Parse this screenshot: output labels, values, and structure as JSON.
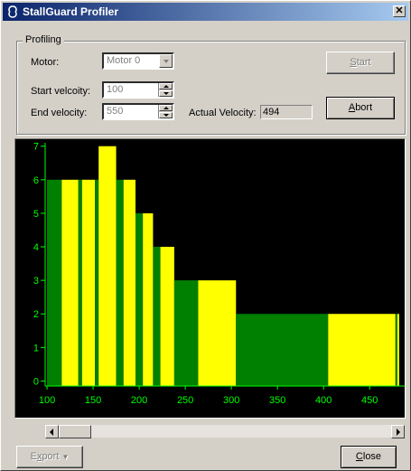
{
  "window": {
    "title": "StallGuard Profiler",
    "close_glyph": "✕"
  },
  "profiling": {
    "group_label": "Profiling",
    "motor_label": "Motor:",
    "motor_value": "Motor 0",
    "start_velocity_label": "Start velcoity:",
    "start_velocity_value": "100",
    "end_velocity_label": "End velocity:",
    "end_velocity_value": "550",
    "actual_velocity_label": "Actual Velocity:",
    "actual_velocity_value": "494",
    "start_button": {
      "prefix": "",
      "hotkey": "S",
      "rest": "tart"
    },
    "abort_button": {
      "prefix": "",
      "hotkey": "A",
      "rest": "bort"
    }
  },
  "footer": {
    "export_button": {
      "prefix": "E",
      "hotkey": "x",
      "rest": "port",
      "arrow": "▼"
    },
    "close_button": {
      "prefix": "",
      "hotkey": "C",
      "rest": "lose"
    }
  },
  "colors": {
    "green": "#008000",
    "yellow": "#ffff00",
    "axis": "#00ff00",
    "background": "#000000"
  },
  "chart_data": {
    "type": "bar",
    "title": "",
    "xlabel": "",
    "ylabel": "",
    "xlim": [
      98,
      488
    ],
    "ylim": [
      -0.15,
      7.1
    ],
    "yticks": [
      0,
      1,
      2,
      3,
      4,
      5,
      6,
      7
    ],
    "xticks": [
      100,
      150,
      200,
      250,
      300,
      350,
      400,
      450
    ],
    "grid": false,
    "legend": "none",
    "segments": [
      {
        "x0": 100,
        "x1": 116,
        "value": 6,
        "color": "#008000"
      },
      {
        "x0": 116,
        "x1": 134,
        "value": 6,
        "color": "#ffff00"
      },
      {
        "x0": 134,
        "x1": 138,
        "value": 6,
        "color": "#008000"
      },
      {
        "x0": 138,
        "x1": 152,
        "value": 6,
        "color": "#ffff00"
      },
      {
        "x0": 152,
        "x1": 156,
        "value": 6,
        "color": "#008000"
      },
      {
        "x0": 156,
        "x1": 175,
        "value": 7,
        "color": "#ffff00"
      },
      {
        "x0": 175,
        "x1": 183,
        "value": 6,
        "color": "#008000"
      },
      {
        "x0": 183,
        "x1": 196,
        "value": 6,
        "color": "#ffff00"
      },
      {
        "x0": 196,
        "x1": 204,
        "value": 5,
        "color": "#008000"
      },
      {
        "x0": 204,
        "x1": 215,
        "value": 5,
        "color": "#ffff00"
      },
      {
        "x0": 215,
        "x1": 223,
        "value": 4,
        "color": "#008000"
      },
      {
        "x0": 223,
        "x1": 238,
        "value": 4,
        "color": "#ffff00"
      },
      {
        "x0": 238,
        "x1": 264,
        "value": 3,
        "color": "#008000"
      },
      {
        "x0": 264,
        "x1": 305,
        "value": 3,
        "color": "#ffff00"
      },
      {
        "x0": 305,
        "x1": 405,
        "value": 2,
        "color": "#008000"
      },
      {
        "x0": 405,
        "x1": 478,
        "value": 2,
        "color": "#ffff00"
      },
      {
        "x0": 478,
        "x1": 480,
        "value": 2,
        "color": "#008000"
      },
      {
        "x0": 480,
        "x1": 482,
        "value": 2,
        "color": "#ffff00"
      }
    ]
  }
}
